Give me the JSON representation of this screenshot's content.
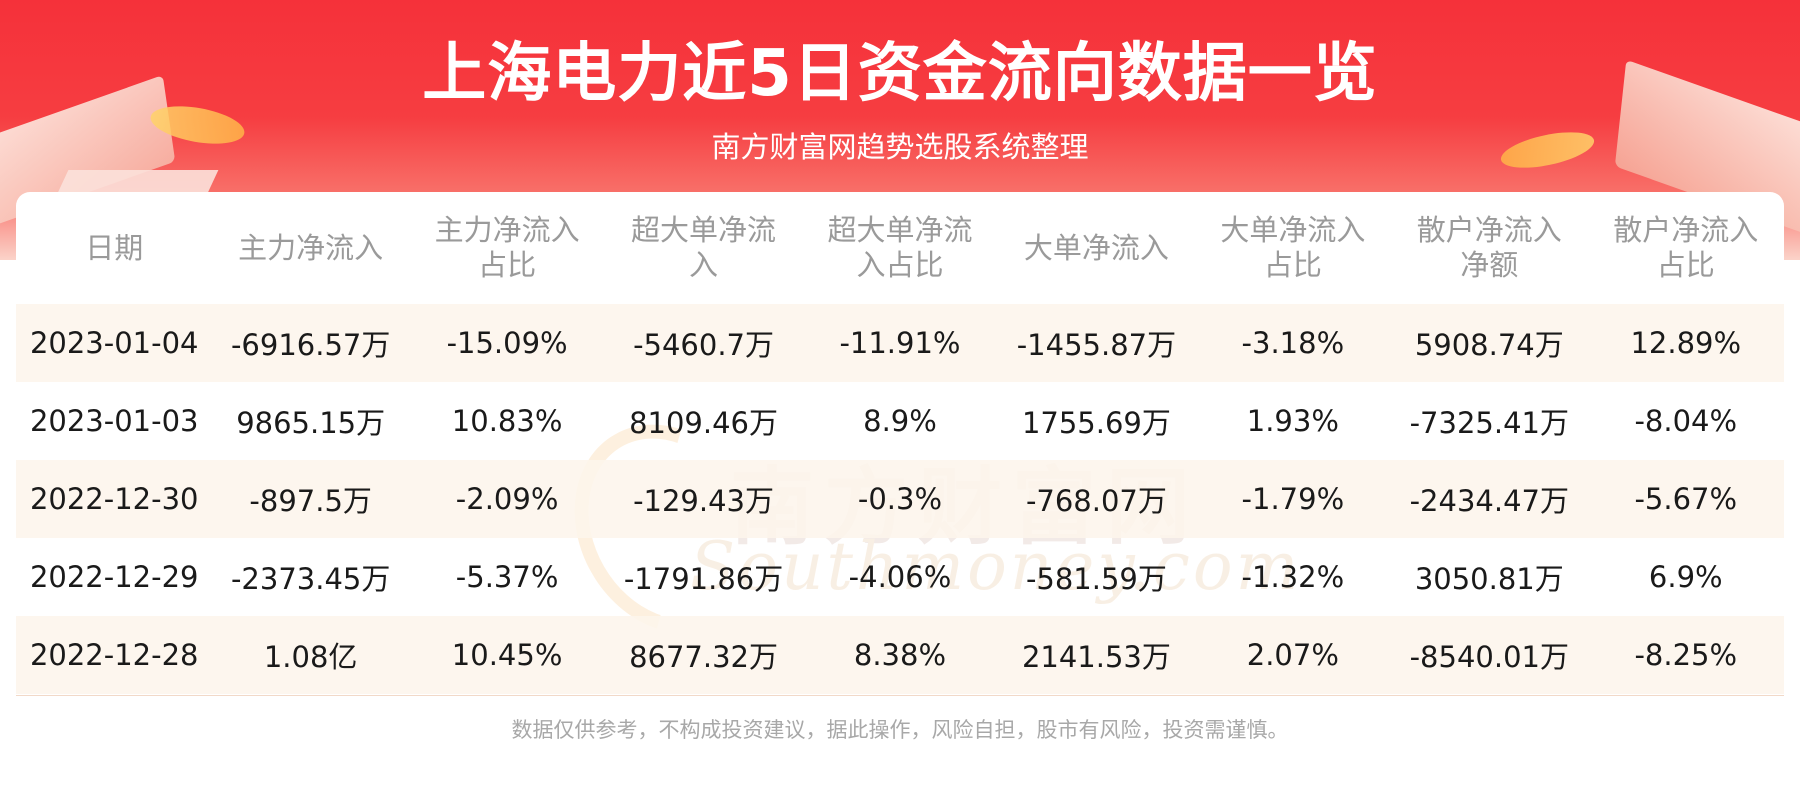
{
  "header": {
    "title": "上海电力近5日资金流向数据一览",
    "subtitle": "南方财富网趋势选股系统整理"
  },
  "watermark": {
    "cn": "南方财富网",
    "en": "Southmoney.com"
  },
  "table": {
    "columns": [
      [
        "日期"
      ],
      [
        "主力净流入"
      ],
      [
        "主力净流入",
        "占比"
      ],
      [
        "超大单净流",
        "入"
      ],
      [
        "超大单净流",
        "入占比"
      ],
      [
        "大单净流入"
      ],
      [
        "大单净流入",
        "占比"
      ],
      [
        "散户净流入",
        "净额"
      ],
      [
        "散户净流入",
        "占比"
      ]
    ],
    "rows": [
      [
        "2023-01-04",
        "-6916.57万",
        "-15.09%",
        "-5460.7万",
        "-11.91%",
        "-1455.87万",
        "-3.18%",
        "5908.74万",
        "12.89%"
      ],
      [
        "2023-01-03",
        "9865.15万",
        "10.83%",
        "8109.46万",
        "8.9%",
        "1755.69万",
        "1.93%",
        "-7325.41万",
        "-8.04%"
      ],
      [
        "2022-12-30",
        "-897.5万",
        "-2.09%",
        "-129.43万",
        "-0.3%",
        "-768.07万",
        "-1.79%",
        "-2434.47万",
        "-5.67%"
      ],
      [
        "2022-12-29",
        "-2373.45万",
        "-5.37%",
        "-1791.86万",
        "-4.06%",
        "-581.59万",
        "-1.32%",
        "3050.81万",
        "6.9%"
      ],
      [
        "2022-12-28",
        "1.08亿",
        "10.45%",
        "8677.32万",
        "8.38%",
        "2141.53万",
        "2.07%",
        "-8540.01万",
        "-8.25%"
      ]
    ]
  },
  "footer": {
    "disclaimer": "数据仅供参考，不构成投资建议，据此操作，风险自担，股市有风险，投资需谨慎。"
  },
  "colors": {
    "banner_red": "#f5313a",
    "header_text": "#9a9a9a",
    "row_shade": "#fdf5ec",
    "body_text": "#1a1a1a"
  }
}
